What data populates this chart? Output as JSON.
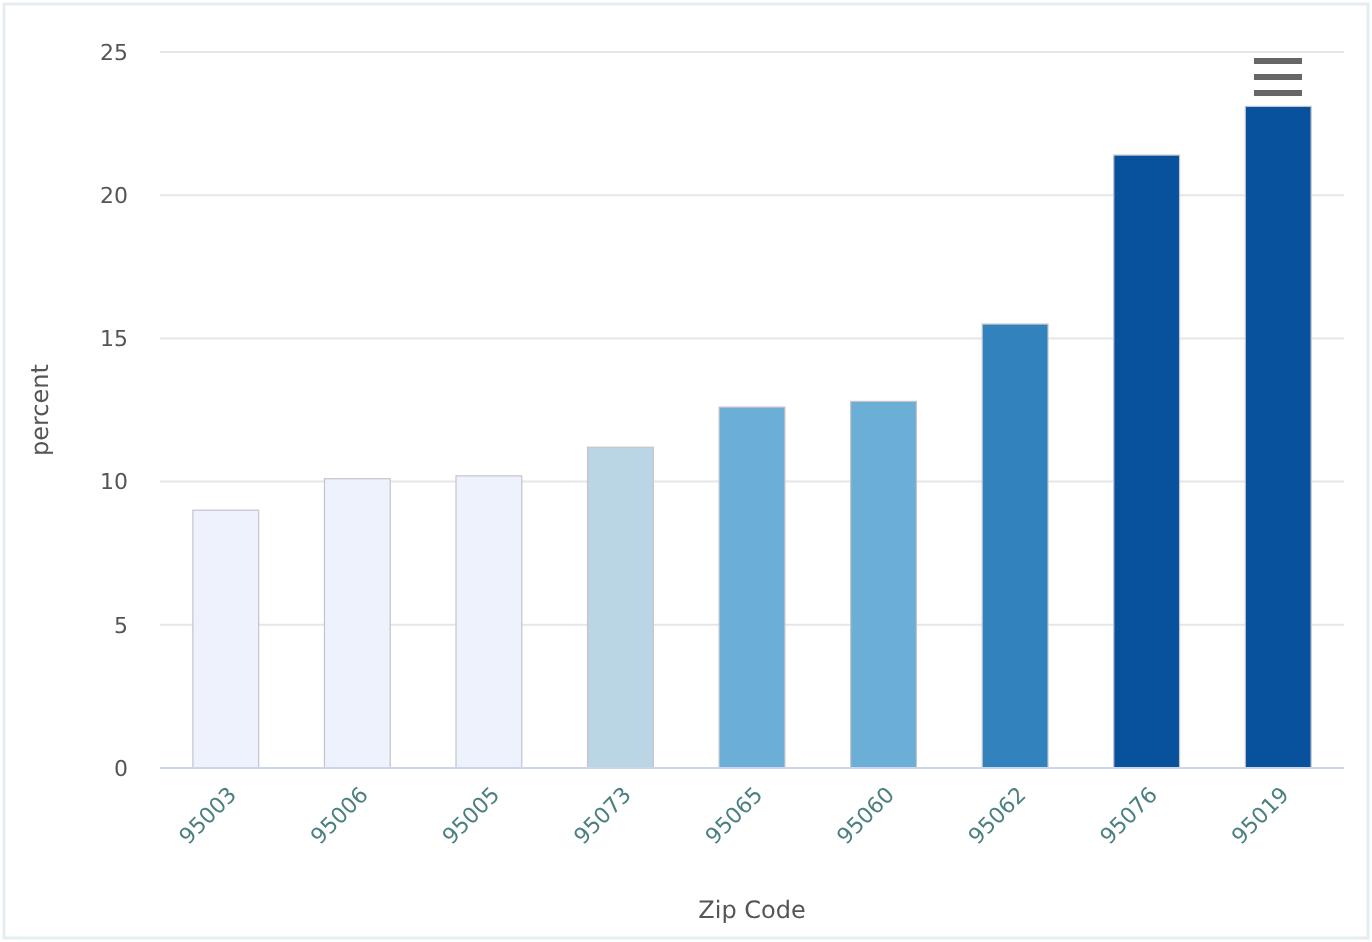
{
  "chart_data": {
    "type": "bar",
    "xlabel": "Zip Code",
    "ylabel": "percent",
    "categories": [
      "95003",
      "95006",
      "95005",
      "95073",
      "95065",
      "95060",
      "95062",
      "95076",
      "95019"
    ],
    "values": [
      9.0,
      10.1,
      10.2,
      11.2,
      12.6,
      12.8,
      15.5,
      21.4,
      23.1
    ],
    "colors": [
      "#eef2fc",
      "#eef2fc",
      "#eef2fc",
      "#bad5e4",
      "#6baed6",
      "#6baed6",
      "#3182bd",
      "#08519c",
      "#08519c"
    ],
    "ylim": [
      0,
      25
    ],
    "yticks": [
      0,
      5,
      10,
      15,
      20,
      25
    ],
    "grid": "y"
  }
}
